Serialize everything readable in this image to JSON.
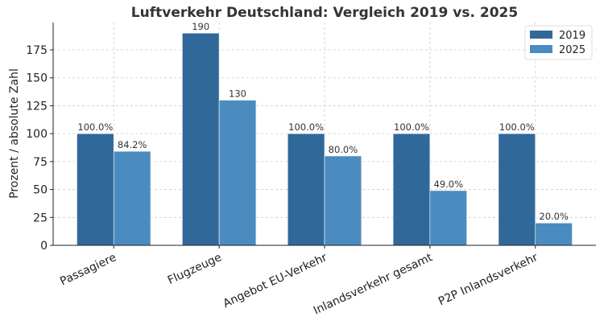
{
  "chart_data": {
    "type": "bar",
    "title": "Luftverkehr Deutschland: Vergleich 2019 vs. 2025",
    "xlabel": "",
    "ylabel": "Prozent / absolute Zahl",
    "categories": [
      "Passagiere",
      "Flugzeuge",
      "Angebot EU-Verkehr",
      "Inlandsverkehr gesamt",
      "P2P Inlandsverkehr"
    ],
    "series": [
      {
        "name": "2019",
        "values": [
          100,
          190,
          100,
          100,
          100
        ],
        "labels": [
          "100.0%",
          "190",
          "100.0%",
          "100.0%",
          "100.0%"
        ],
        "color": "#31689a"
      },
      {
        "name": "2025",
        "values": [
          84.2,
          130,
          80,
          49,
          20
        ],
        "labels": [
          "84.2%",
          "130",
          "80.0%",
          "49.0%",
          "20.0%"
        ],
        "color": "#4a8bc0"
      }
    ],
    "ylim": [
      0,
      199.5
    ],
    "yticks": [
      0,
      25,
      50,
      75,
      100,
      125,
      150,
      175
    ],
    "grid": true,
    "legend": "top-right"
  }
}
